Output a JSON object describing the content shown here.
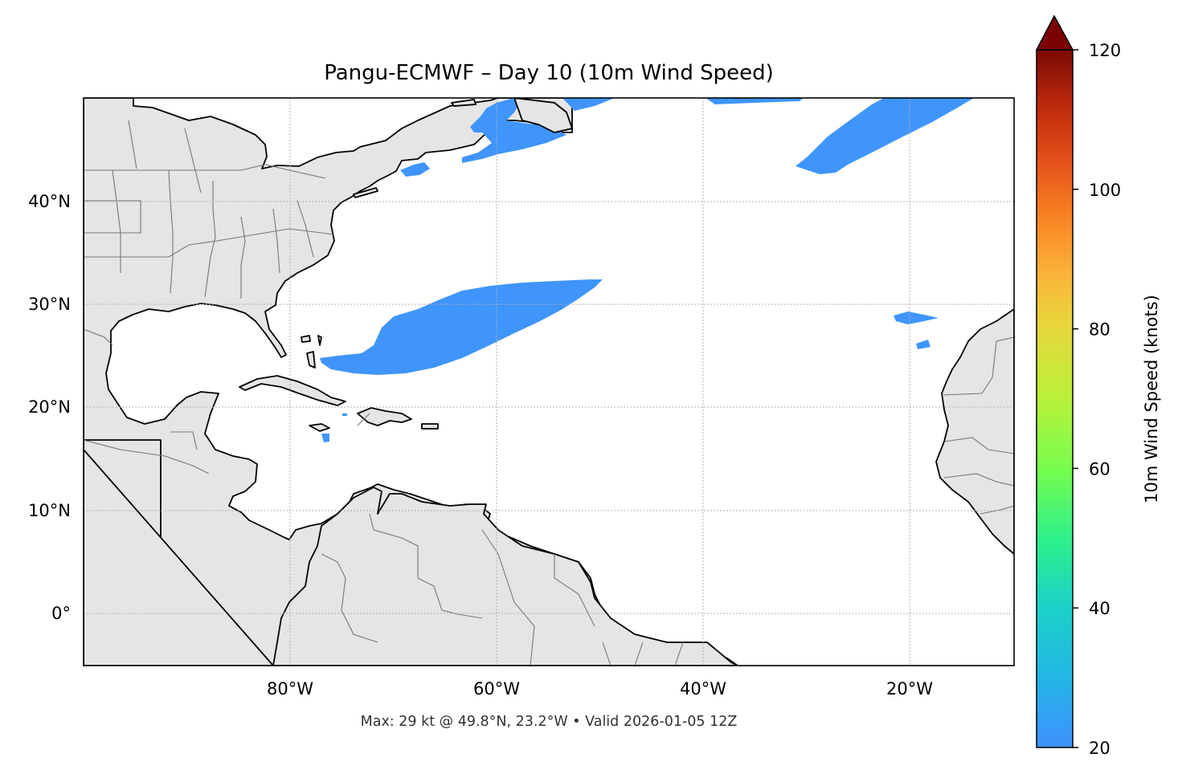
{
  "title": "Pangu-ECMWF – Day 10 (10m Wind Speed)",
  "footer": "Max: 29 kt @ 49.8°N, 23.2°W • Valid 2026-01-05 12Z",
  "colorbar": {
    "label": "10m Wind Speed (knots)",
    "ticks": [
      "20",
      "40",
      "60",
      "80",
      "100",
      "120"
    ],
    "tick_values": [
      20,
      40,
      60,
      80,
      100,
      120
    ],
    "range": [
      20,
      120
    ],
    "colormap": "turbo",
    "extend": "max"
  },
  "axes": {
    "lon_ticks": [
      "80°W",
      "60°W",
      "40°W",
      "20°W"
    ],
    "lat_ticks": [
      "40°N",
      "30°N",
      "20°N",
      "10°N",
      "0°"
    ],
    "lon_range": [
      -100,
      -10
    ],
    "lat_range": [
      -5,
      50
    ]
  },
  "colors": {
    "land": "#e5e5e5",
    "wind_low": "#3f95fb",
    "wind_mid": "#1fc8d8"
  },
  "wind_regions": [
    {
      "name": "western-atlantic-band",
      "speed_kt": 22
    },
    {
      "name": "northeast-atlantic-band",
      "speed_kt": 29
    },
    {
      "name": "nova-scotia-band",
      "speed_kt": 22
    },
    {
      "name": "canary-patch",
      "speed_kt": 21
    }
  ]
}
